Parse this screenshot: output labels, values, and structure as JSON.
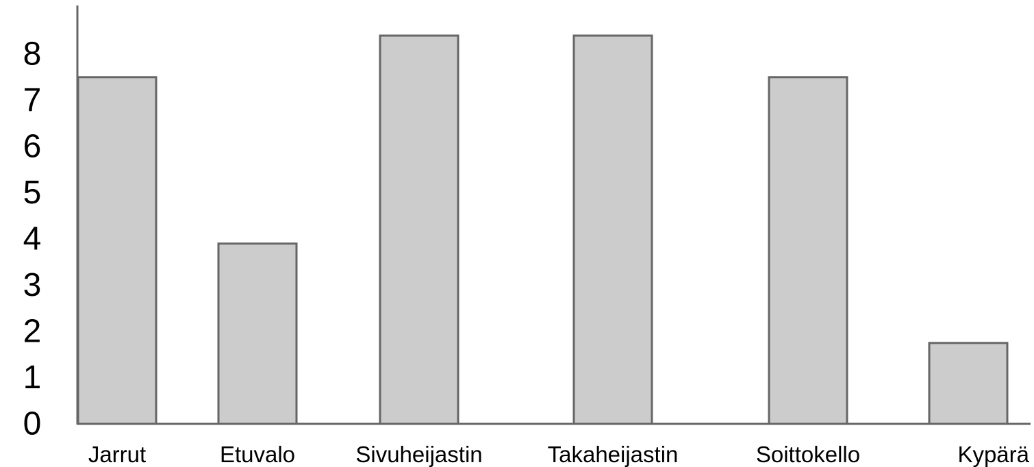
{
  "chart_data": {
    "type": "bar",
    "categories": [
      "Jarrut",
      "Etuvalo",
      "Sivuheijastin",
      "Takaheijastin",
      "Soittokello",
      "Kypärä"
    ],
    "values": [
      7.5,
      3.9,
      8.4,
      8.4,
      7.5,
      1.75
    ],
    "y_ticks": [
      "0",
      "1",
      "2",
      "3",
      "4",
      "5",
      "6",
      "7",
      "8"
    ],
    "ylim": [
      0,
      9
    ],
    "grid": false,
    "legend": "none",
    "colors": {
      "bar_fill": "#cccccc",
      "bar_stroke": "#666666",
      "axis": "#666666",
      "text": "#000000"
    }
  }
}
